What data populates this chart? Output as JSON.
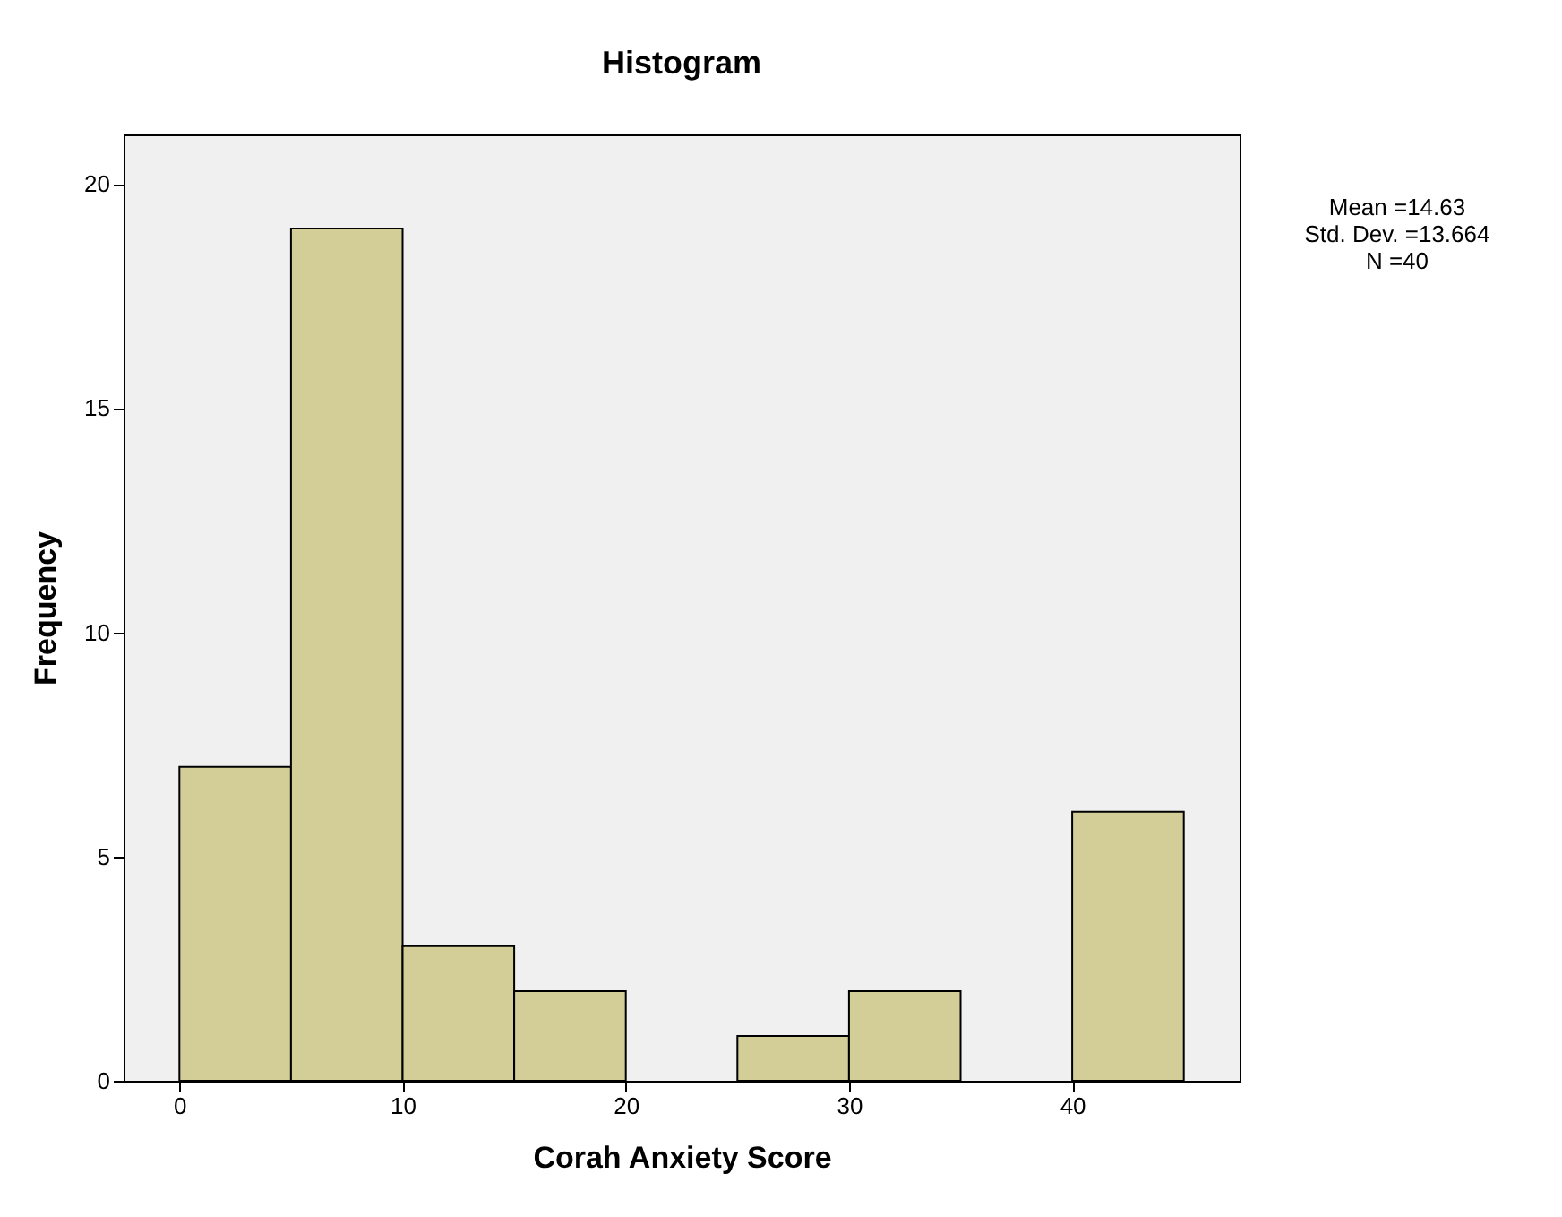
{
  "chart_data": {
    "type": "histogram",
    "title": "Histogram",
    "xlabel": "Corah Anxiety Score",
    "ylabel": "Frequency",
    "bins": [
      0,
      5,
      10,
      15,
      20,
      25,
      30,
      35,
      40,
      45
    ],
    "values": [
      7,
      19,
      3,
      2,
      0,
      1,
      2,
      0,
      6
    ],
    "color": "#d3ce97",
    "xlim": [
      -2.5,
      47.5
    ],
    "xticks": [
      0,
      10,
      20,
      30,
      40
    ],
    "ylim": [
      0,
      21.1
    ],
    "yticks": [
      0,
      5,
      10,
      15,
      20
    ],
    "grid": false,
    "annotations": [
      "Mean =14.63",
      "Std. Dev. =13.664",
      "N =40"
    ]
  }
}
